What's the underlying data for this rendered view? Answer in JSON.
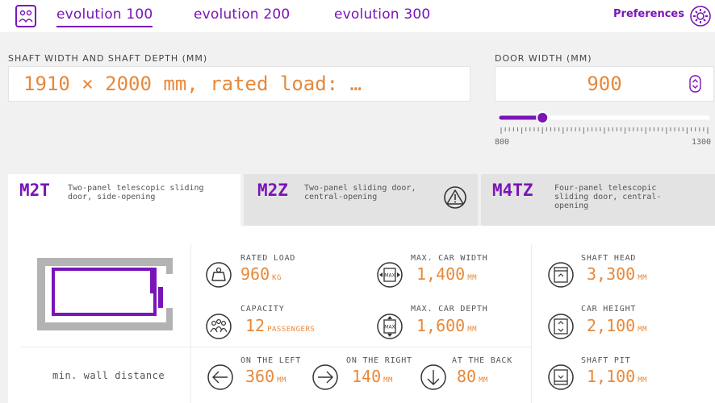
{
  "nav": {
    "tabs": [
      {
        "label": "evolution 100",
        "active": true
      },
      {
        "label": "evolution 200",
        "active": false
      },
      {
        "label": "evolution 300",
        "active": false
      }
    ],
    "preferences_label": "Preferences"
  },
  "shaft": {
    "label": "SHAFT WIDTH AND SHAFT DEPTH (MM)",
    "value": "1910 × 2000 mm, rated load: …"
  },
  "door_width": {
    "label": "DOOR WIDTH (MM)",
    "value": "900",
    "slider_min": "800",
    "slider_max": "1300",
    "slider_fraction": 0.2
  },
  "door_types": [
    {
      "code": "M2T",
      "description": "Two-panel telescopic sliding door, side-opening",
      "active": true
    },
    {
      "code": "M2Z",
      "description": "Two-panel sliding door, central-opening",
      "active": false,
      "warning": true
    },
    {
      "code": "M4TZ",
      "description": "Four-panel telescopic sliding door, central-opening",
      "active": false
    }
  ],
  "specs": {
    "rated_load": {
      "label": "RATED LOAD",
      "value": "960",
      "unit": "KG"
    },
    "max_car_width": {
      "label": "MAX. CAR WIDTH",
      "value": "1,400",
      "unit": "MM"
    },
    "shaft_head": {
      "label": "SHAFT HEAD",
      "value": "3,300",
      "unit": "MM"
    },
    "capacity": {
      "label": "CAPACITY",
      "value": "12",
      "unit": "PASSENGERS"
    },
    "max_car_depth": {
      "label": "MAX. CAR DEPTH",
      "value": "1,600",
      "unit": "MM"
    },
    "car_height": {
      "label": "CAR HEIGHT",
      "value": "2,100",
      "unit": "MM"
    },
    "shaft_pit": {
      "label": "SHAFT PIT",
      "value": "1,100",
      "unit": "MM"
    }
  },
  "wall_distance": {
    "label": "min. wall distance",
    "left": {
      "label": "ON THE LEFT",
      "value": "360",
      "unit": "MM"
    },
    "right": {
      "label": "ON THE RIGHT",
      "value": "140",
      "unit": "MM"
    },
    "back": {
      "label": "AT THE BACK",
      "value": "80",
      "unit": "MM"
    }
  },
  "colors": {
    "accent": "#7a14b8",
    "value": "#e8883a"
  }
}
